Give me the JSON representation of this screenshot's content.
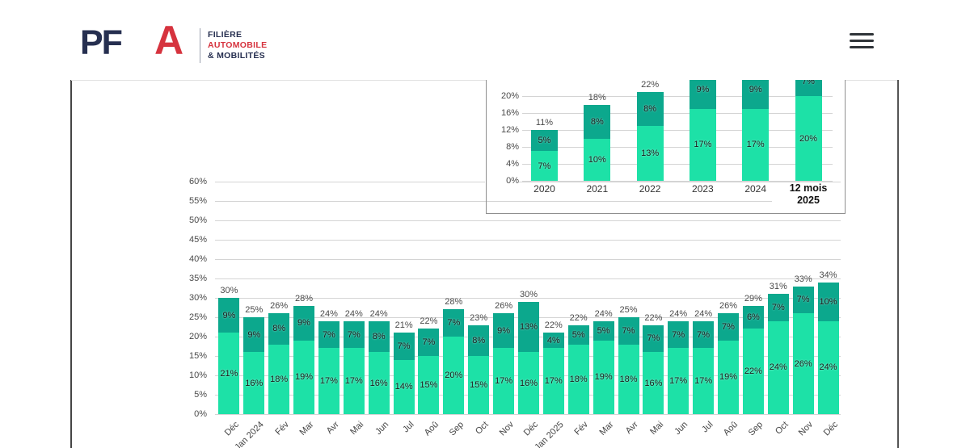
{
  "header": {
    "logo": {
      "pf": "PF",
      "a": "A",
      "tagline_line1": "FILIÈRE",
      "tagline_line2": "AUTOMOBILE",
      "tagline_line3": "& MOBILITÉS"
    },
    "menu_icon": "hamburger-menu-icon"
  },
  "colors": {
    "series_bottom": "#1DE1A7",
    "series_top": "#0CA88D",
    "logo_navy": "#262F50",
    "logo_red": "#D6333E",
    "gridline": "#D4D4D4",
    "axis_text": "#4A4A4A",
    "label_text": "#1C1C1C",
    "inset_border": "#8F8F8F",
    "frame_border": "#454545"
  },
  "chart_data": [
    {
      "id": "monthly",
      "type": "bar",
      "stacked": true,
      "categories": [
        "Déc",
        "Jan 2024",
        "Fév",
        "Mar",
        "Avr",
        "Mai",
        "Jun",
        "Jul",
        "Aoû",
        "Sep",
        "Oct",
        "Nov",
        "Déc",
        "Jan 2025",
        "Fév",
        "Mar",
        "Avr",
        "Mai",
        "Jun",
        "Jul",
        "Aoû",
        "Sep",
        "Oct",
        "Nov",
        "Déc"
      ],
      "series": [
        {
          "name": "bottom",
          "color": "#1DE1A7",
          "values": [
            21,
            16,
            18,
            19,
            17,
            17,
            16,
            14,
            15,
            20,
            15,
            17,
            16,
            17,
            18,
            19,
            18,
            16,
            17,
            17,
            19,
            22,
            24,
            26,
            24
          ]
        },
        {
          "name": "top",
          "color": "#0CA88D",
          "values": [
            9,
            9,
            8,
            9,
            7,
            7,
            8,
            7,
            7,
            7,
            8,
            9,
            13,
            4,
            5,
            5,
            7,
            7,
            7,
            7,
            7,
            6,
            7,
            7,
            10
          ]
        }
      ],
      "totals": [
        30,
        25,
        26,
        28,
        24,
        24,
        24,
        21,
        22,
        28,
        23,
        26,
        30,
        22,
        22,
        24,
        25,
        22,
        24,
        24,
        26,
        29,
        31,
        33,
        34
      ],
      "y_ticks": [
        60,
        55,
        50,
        45,
        40,
        35,
        30,
        25,
        20,
        15,
        10,
        5,
        0
      ],
      "ylim": [
        0,
        60
      ],
      "grid": true,
      "legend": "none",
      "title": ""
    },
    {
      "id": "annual",
      "type": "bar",
      "stacked": true,
      "categories": [
        "2020",
        "2021",
        "2022",
        "2023",
        "2024",
        "12 mois\n2025"
      ],
      "series": [
        {
          "name": "bottom",
          "color": "#1DE1A7",
          "values": [
            7,
            10,
            13,
            17,
            17,
            20
          ]
        },
        {
          "name": "top",
          "color": "#0CA88D",
          "values": [
            5,
            8,
            8,
            9,
            9,
            7
          ]
        }
      ],
      "totals": [
        11,
        18,
        22,
        null,
        null,
        null
      ],
      "y_ticks": [
        20,
        16,
        12,
        8,
        4,
        0
      ],
      "ylim": [
        0,
        27
      ],
      "grid": true,
      "legend": "none",
      "title": ""
    }
  ]
}
